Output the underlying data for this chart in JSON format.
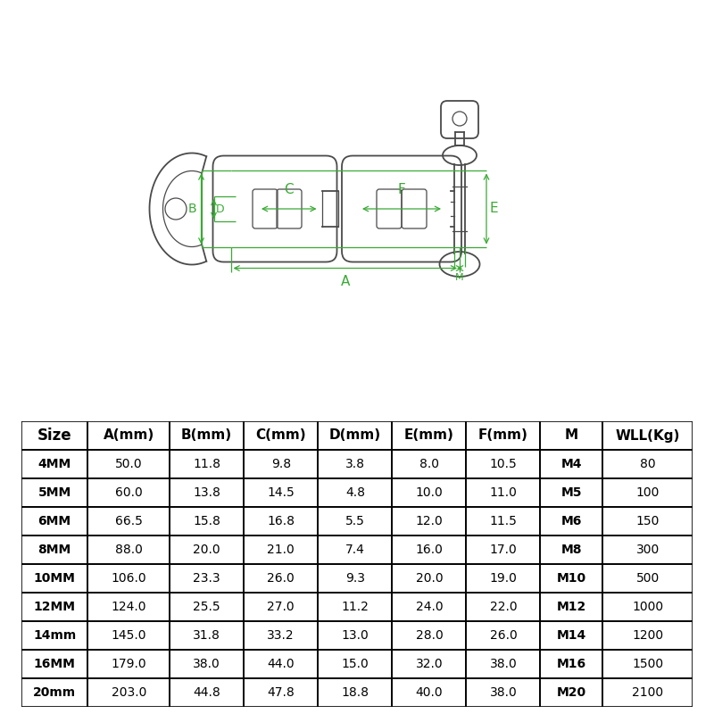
{
  "table_headers": [
    "Size",
    "A(mm)",
    "B(mm)",
    "C(mm)",
    "D(mm)",
    "E(mm)",
    "F(mm)",
    "M",
    "WLL(Kg)"
  ],
  "table_rows": [
    [
      "4MM",
      "50.0",
      "11.8",
      "9.8",
      "3.8",
      "8.0",
      "10.5",
      "M4",
      "80"
    ],
    [
      "5MM",
      "60.0",
      "13.8",
      "14.5",
      "4.8",
      "10.0",
      "11.0",
      "M5",
      "100"
    ],
    [
      "6MM",
      "66.5",
      "15.8",
      "16.8",
      "5.5",
      "12.0",
      "11.5",
      "M6",
      "150"
    ],
    [
      "8MM",
      "88.0",
      "20.0",
      "21.0",
      "7.4",
      "16.0",
      "17.0",
      "M8",
      "300"
    ],
    [
      "10MM",
      "106.0",
      "23.3",
      "26.0",
      "9.3",
      "20.0",
      "19.0",
      "M10",
      "500"
    ],
    [
      "12MM",
      "124.0",
      "25.5",
      "27.0",
      "11.2",
      "24.0",
      "22.0",
      "M12",
      "1000"
    ],
    [
      "14mm",
      "145.0",
      "31.8",
      "33.2",
      "13.0",
      "28.0",
      "26.0",
      "M14",
      "1200"
    ],
    [
      "16MM",
      "179.0",
      "38.0",
      "44.0",
      "15.0",
      "32.0",
      "38.0",
      "M16",
      "1500"
    ],
    [
      "20mm",
      "203.0",
      "44.8",
      "47.8",
      "18.8",
      "40.0",
      "38.0",
      "M20",
      "2100"
    ]
  ],
  "bg_color": "#ffffff",
  "line_color": "#000000",
  "green_color": "#3aaa35",
  "drawing_color": "#4a4a4a",
  "table_border_color": "#000000",
  "fig_w": 8.0,
  "fig_h": 8.0,
  "dpi": 100
}
